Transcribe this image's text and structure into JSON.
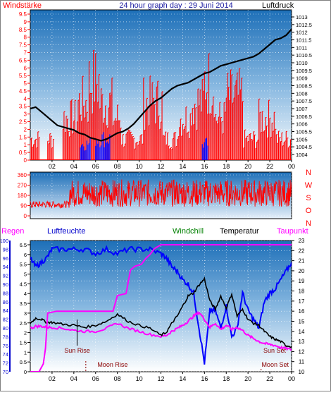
{
  "header": {
    "left_label": "Windstärke",
    "title": "24 hour graph day : 29 Juni 2014",
    "right_label": "Luftdruck"
  },
  "lower_header": {
    "regen": "Regen",
    "luftfeuchte": "Luftfeuchte",
    "windchill": "Windchill",
    "temperatur": "Temperatur",
    "taupunkt": "Taupunkt"
  },
  "colors": {
    "wind": "#ff0000",
    "gust": "#0000ff",
    "pressure": "#000000",
    "humidity": "#0000ff",
    "windchill": "#008000",
    "temperature": "#000000",
    "dewpoint": "#ff00ff",
    "rain": "#ff00ff",
    "sky_top": "#1d6fb8",
    "sky_bottom": "#ffffff"
  },
  "chart_data": [
    {
      "type": "bar",
      "name": "wind-speed-and-pressure",
      "x_ticks": [
        "02",
        "04",
        "06",
        "08",
        "10",
        "12",
        "14",
        "16",
        "18",
        "20",
        "22",
        "00"
      ],
      "x_range_hours": [
        0,
        24
      ],
      "left_axis": {
        "label": "Windstärke",
        "range": [
          0,
          9.5
        ],
        "ticks": [
          "0",
          "0.5",
          "1",
          "1.5",
          "2",
          "2.5",
          "3",
          "3.5",
          "4",
          "4.5",
          "5",
          "5.5",
          "6",
          "6.5",
          "7",
          "7.5",
          "8",
          "8.5",
          "9",
          "9.5"
        ]
      },
      "right_axis": {
        "label": "Luftdruck",
        "range": [
          1004,
          1013
        ],
        "ticks": [
          "1004",
          "1004.5",
          "1005",
          "1005.5",
          "1006",
          "1006.5",
          "1007",
          "1007.5",
          "1008",
          "1008.5",
          "1009",
          "1009.5",
          "1010",
          "1010.5",
          "1011",
          "1011.5",
          "1012",
          "1012.5",
          "1013"
        ]
      },
      "pressure": {
        "x": [
          0,
          0.5,
          1,
          1.5,
          2,
          2.5,
          3,
          3.5,
          4,
          4.5,
          5,
          5.5,
          6,
          6.5,
          7,
          7.5,
          8,
          8.5,
          9,
          9.5,
          10,
          10.5,
          11,
          11.5,
          12,
          12.5,
          13,
          13.5,
          14,
          14.5,
          15,
          15.5,
          16,
          16.5,
          17,
          17.5,
          18,
          18.5,
          19,
          19.5,
          20,
          20.5,
          21,
          21.5,
          22,
          22.5,
          23,
          23.5,
          24
        ],
        "y": [
          1007.0,
          1007.1,
          1006.8,
          1006.5,
          1006.2,
          1005.9,
          1005.8,
          1005.7,
          1005.6,
          1005.4,
          1005.3,
          1005.1,
          1005.0,
          1004.9,
          1005.0,
          1005.2,
          1005.4,
          1005.5,
          1005.7,
          1006.0,
          1006.4,
          1006.8,
          1007.2,
          1007.5,
          1007.7,
          1008.0,
          1008.3,
          1008.5,
          1008.6,
          1008.7,
          1008.9,
          1009.1,
          1009.3,
          1009.4,
          1009.6,
          1009.8,
          1009.9,
          1010.0,
          1010.1,
          1010.2,
          1010.3,
          1010.4,
          1010.6,
          1010.9,
          1011.2,
          1011.5,
          1011.6,
          1011.8,
          1012.2
        ]
      },
      "wind_segments": [
        {
          "from": 0,
          "to": 0.9,
          "level": 2
        },
        {
          "from": 1.6,
          "to": 2.2,
          "level": 2
        },
        {
          "from": 3.0,
          "to": 4.4,
          "level": 4
        },
        {
          "from": 4.4,
          "to": 5.4,
          "level": 5.5
        },
        {
          "from": 5.4,
          "to": 6.4,
          "level": 7.5
        },
        {
          "from": 6.4,
          "to": 7.6,
          "level": 5.5
        },
        {
          "from": 7.6,
          "to": 8.4,
          "level": 4
        },
        {
          "from": 8.4,
          "to": 10.4,
          "level": 2
        },
        {
          "from": 10.4,
          "to": 12.2,
          "level": 5.5
        },
        {
          "from": 12.2,
          "to": 13.6,
          "level": 2
        },
        {
          "from": 13.6,
          "to": 14.8,
          "level": 4
        },
        {
          "from": 14.8,
          "to": 16.0,
          "level": 5.5
        },
        {
          "from": 16.0,
          "to": 17.0,
          "level": 7.5
        },
        {
          "from": 17.0,
          "to": 18.0,
          "level": 4
        },
        {
          "from": 18.0,
          "to": 19.6,
          "level": 6
        },
        {
          "from": 19.6,
          "to": 21.0,
          "level": 2
        },
        {
          "from": 21.0,
          "to": 22.6,
          "level": 4
        },
        {
          "from": 22.6,
          "to": 24,
          "level": 2
        }
      ],
      "gusts": [
        {
          "from": 4.6,
          "to": 5.6,
          "level": 1.5
        },
        {
          "from": 6.0,
          "to": 7.4,
          "level": 2.0
        },
        {
          "from": 15.8,
          "to": 16.4,
          "level": 1.5
        }
      ]
    },
    {
      "type": "scatter",
      "name": "wind-direction",
      "left_axis": {
        "ticks": [
          "0",
          "90",
          "180",
          "270",
          "360"
        ],
        "range": [
          0,
          360
        ]
      },
      "right_labels": [
        "N",
        "W",
        "S",
        "O",
        "N"
      ],
      "segments": [
        {
          "from": 0,
          "to": 3.6,
          "center": 100,
          "spread": 30
        },
        {
          "from": 3.6,
          "to": 24,
          "center": 200,
          "spread": 120
        }
      ]
    },
    {
      "type": "line",
      "name": "temperature-humidity-dewpoint",
      "x_ticks": [
        "02",
        "04",
        "06",
        "08",
        "10",
        "12",
        "14",
        "16",
        "18",
        "20",
        "22",
        "00"
      ],
      "humidity_axis": {
        "label": "Luftfeuchte",
        "range": [
          70,
          100
        ],
        "ticks": [
          "70",
          "72",
          "74",
          "76",
          "78",
          "80",
          "82",
          "84",
          "86",
          "88",
          "90",
          "92",
          "94",
          "96",
          "98",
          "100"
        ]
      },
      "rain_axis": {
        "label": "Regen",
        "range": [
          0,
          6.5
        ],
        "ticks": [
          "0",
          "0.5",
          "1",
          "1.5",
          "2",
          "2.5",
          "3",
          "3.5",
          "4",
          "4.5",
          "5",
          "5.5",
          "6",
          "6.5"
        ]
      },
      "temp_axis": {
        "range": [
          10,
          23
        ],
        "ticks": [
          "10",
          "11",
          "12",
          "13",
          "14",
          "15",
          "16",
          "17",
          "18",
          "19",
          "20",
          "21",
          "22",
          "23"
        ]
      },
      "humidity": {
        "x": [
          0,
          0.5,
          1,
          1.5,
          2,
          3,
          4,
          5,
          6,
          7,
          8,
          9,
          10,
          11,
          12,
          12.5,
          13,
          13.5,
          14,
          14.5,
          15,
          15.5,
          16,
          16.5,
          17,
          17.5,
          18,
          18.5,
          19,
          19.5,
          20,
          20.5,
          21,
          21.5,
          22,
          22.5,
          23,
          23.5,
          24
        ],
        "y": [
          96,
          94,
          95,
          96,
          98,
          98,
          98,
          98,
          97,
          98,
          97,
          98,
          98,
          98,
          97,
          96,
          94,
          93,
          91,
          90,
          88,
          80,
          72,
          84,
          84,
          80,
          85,
          78,
          80,
          88,
          84,
          82,
          80,
          86,
          88,
          89,
          91,
          93,
          95
        ]
      },
      "temperature": {
        "x": [
          0,
          0.5,
          1,
          1.5,
          2,
          3,
          4,
          5,
          6,
          7,
          8,
          9,
          10,
          11,
          12,
          12.5,
          13,
          13.5,
          14,
          14.5,
          15,
          15.5,
          16,
          16.5,
          17,
          17.5,
          18,
          18.5,
          19,
          19.5,
          20,
          20.5,
          21,
          21.5,
          22,
          22.5,
          23,
          23.5,
          24
        ],
        "y": [
          14.8,
          15.3,
          15.2,
          14.9,
          14.9,
          14.7,
          14.6,
          14.4,
          14.6,
          15.0,
          15.7,
          15.0,
          14.6,
          14.3,
          13.6,
          13.9,
          14.8,
          15.5,
          16.5,
          17.5,
          17.8,
          18.6,
          19.2,
          17.0,
          16.2,
          17.5,
          16.3,
          17.7,
          15.5,
          16.2,
          15.2,
          14.8,
          14.6,
          14.0,
          13.5,
          13.2,
          13.0,
          12.6,
          12.5
        ]
      },
      "dewpoint": {
        "x": [
          0,
          0.5,
          1,
          1.5,
          2,
          3,
          4,
          5,
          6,
          7,
          8,
          9,
          10,
          11,
          12,
          12.5,
          13,
          13.5,
          14,
          14.5,
          15,
          15.5,
          16,
          16.5,
          17,
          17.5,
          18,
          18.5,
          19,
          19.5,
          20,
          20.5,
          21,
          21.5,
          22,
          22.5,
          23,
          23.5,
          24
        ],
        "y": [
          14.3,
          14.5,
          14.5,
          14.4,
          14.4,
          14.3,
          14.1,
          14.0,
          14.0,
          14.3,
          14.8,
          14.3,
          14.0,
          13.7,
          13.5,
          13.6,
          14.0,
          14.3,
          14.6,
          15.0,
          15.5,
          15.9,
          15.2,
          14.4,
          14.8,
          14.2,
          14.6,
          14.2,
          14.4,
          14.1,
          13.6,
          13.3,
          13.0,
          12.8,
          12.7,
          12.6,
          12.4,
          12.3,
          12.2
        ]
      },
      "rain": {
        "x": [
          0,
          0.8,
          1.2,
          1.4,
          1.6,
          2.4,
          7.6,
          8.0,
          8.8,
          9.2,
          9.6,
          10.2,
          10.6,
          11.0,
          11.4,
          12.0,
          24
        ],
        "y": [
          0,
          0,
          0.4,
          1.2,
          3.0,
          3.1,
          3.1,
          3.9,
          4.0,
          5.2,
          5.4,
          5.5,
          5.8,
          6.0,
          6.3,
          6.5,
          6.5
        ]
      },
      "annotations": {
        "sun_rise": {
          "label": "Sun Rise",
          "hour": 4.3
        },
        "moon_rise": {
          "label": "Moon Rise",
          "hour": 5.1
        },
        "sun_set": {
          "label": "Sun Set",
          "hour": 21.8
        },
        "moon_set": {
          "label": "Moon Set",
          "hour": 21.2
        }
      }
    }
  ]
}
